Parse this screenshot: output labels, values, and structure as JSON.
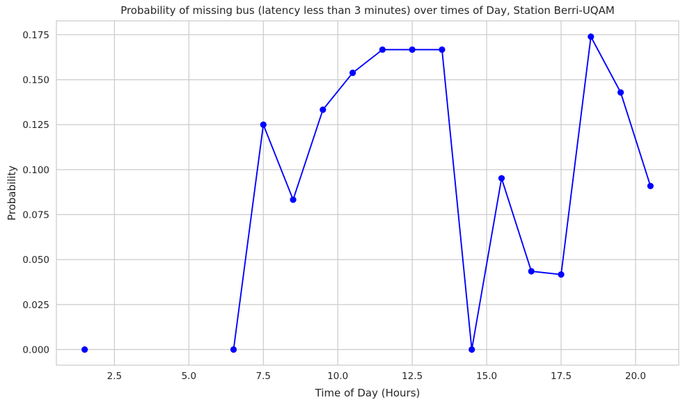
{
  "chart_data": {
    "type": "line",
    "title": "Probability of missing bus (latency less than 3 minutes) over times of Day, Station Berri-UQAM",
    "xlabel": "Time of Day (Hours)",
    "ylabel": "Probability",
    "xlim": [
      0.55,
      21.45
    ],
    "ylim": [
      -0.0087,
      0.1827
    ],
    "xticks": [
      2.5,
      5.0,
      7.5,
      10.0,
      12.5,
      15.0,
      17.5,
      20.0
    ],
    "xtick_labels": [
      "2.5",
      "5.0",
      "7.5",
      "10.0",
      "12.5",
      "15.0",
      "17.5",
      "20.0"
    ],
    "yticks": [
      0.0,
      0.025,
      0.05,
      0.075,
      0.1,
      0.125,
      0.15,
      0.175
    ],
    "ytick_labels": [
      "0.000",
      "0.025",
      "0.050",
      "0.075",
      "0.100",
      "0.125",
      "0.150",
      "0.175"
    ],
    "grid": true,
    "series": [
      {
        "color": "#0000ff",
        "marker": "circle",
        "segments": [
          {
            "x": [
              1.5
            ],
            "y": [
              0.0
            ]
          },
          {
            "x": [
              6.5,
              7.5,
              8.5,
              9.5,
              10.5,
              11.5,
              12.5,
              13.5,
              14.5,
              15.5,
              16.5,
              17.5,
              18.5,
              19.5,
              20.5
            ],
            "y": [
              0.0,
              0.125,
              0.0833,
              0.1333,
              0.1538,
              0.1667,
              0.1667,
              0.1667,
              0.0,
              0.0952,
              0.0435,
              0.0417,
              0.1739,
              0.1429,
              0.0909
            ]
          }
        ]
      }
    ]
  }
}
